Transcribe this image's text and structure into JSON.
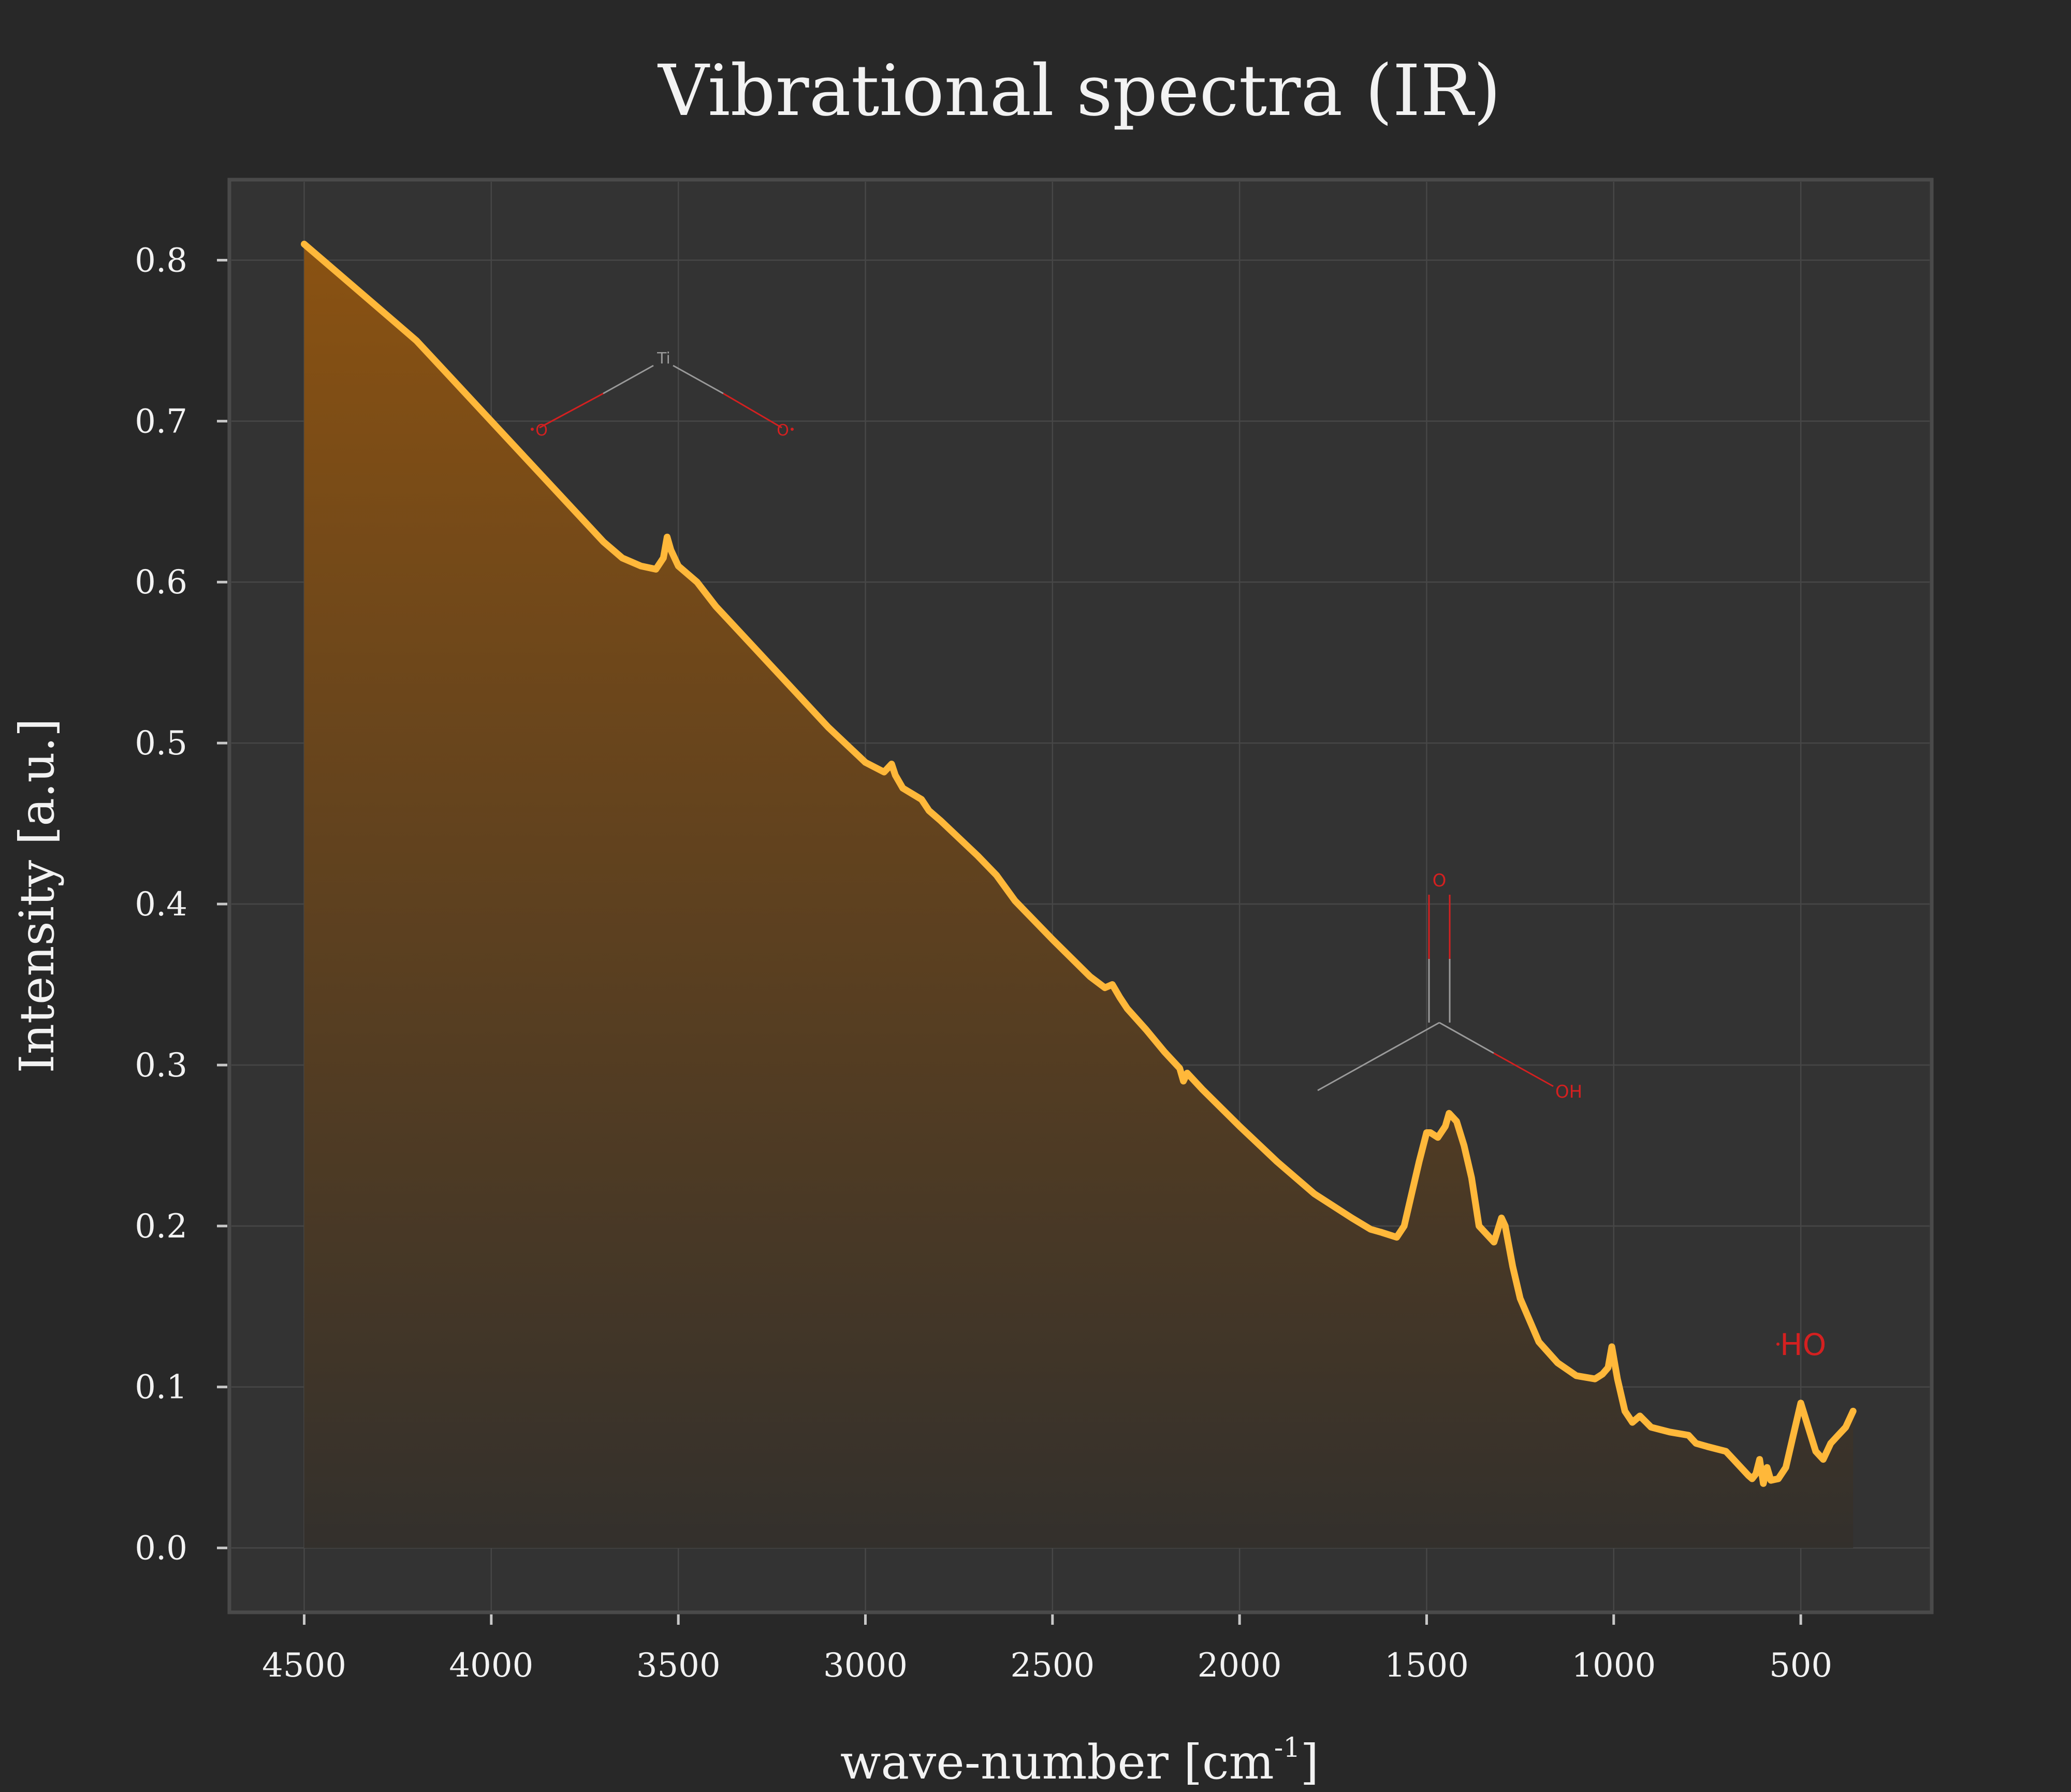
{
  "chart_data": {
    "type": "area",
    "title": "Vibrational spectra (IR)",
    "xlabel": "wave-number [cm",
    "xlabel_sup": "-1",
    "xlabel_suffix": "]",
    "ylabel": "Intensity [a.u.]",
    "xlim": [
      4700,
      150
    ],
    "ylim": [
      -0.04,
      0.85
    ],
    "x_reversed": true,
    "grid": true,
    "x_ticks": [
      4500,
      4000,
      3500,
      3000,
      2500,
      2000,
      1500,
      1000,
      500
    ],
    "y_ticks": [
      0.0,
      0.1,
      0.2,
      0.3,
      0.4,
      0.5,
      0.6,
      0.7,
      0.8
    ],
    "y_tick_labels": [
      "0.0",
      "0.1",
      "0.2",
      "0.3",
      "0.4",
      "0.5",
      "0.6",
      "0.7",
      "0.8"
    ],
    "series": [
      {
        "line_color": "#FFB83A",
        "fill_top_color": "#8a5212",
        "fill_bottom_color": "#33302c",
        "x": [
          4500,
          4400,
          4300,
          4200,
          4100,
          4000,
          3900,
          3800,
          3700,
          3650,
          3600,
          3560,
          3540,
          3530,
          3520,
          3500,
          3450,
          3400,
          3300,
          3200,
          3100,
          3000,
          2950,
          2930,
          2920,
          2900,
          2850,
          2830,
          2800,
          2700,
          2650,
          2600,
          2500,
          2400,
          2360,
          2340,
          2320,
          2300,
          2250,
          2200,
          2160,
          2150,
          2140,
          2100,
          2000,
          1900,
          1800,
          1700,
          1650,
          1620,
          1580,
          1560,
          1540,
          1520,
          1500,
          1490,
          1470,
          1450,
          1440,
          1420,
          1400,
          1380,
          1360,
          1340,
          1320,
          1300,
          1290,
          1270,
          1250,
          1200,
          1150,
          1100,
          1050,
          1030,
          1015,
          1005,
          990,
          970,
          950,
          930,
          900,
          850,
          800,
          780,
          750,
          700,
          680,
          660,
          640,
          630,
          620,
          610,
          600,
          590,
          580,
          560,
          540,
          520,
          500,
          480,
          460,
          440,
          420,
          400,
          380,
          360
        ],
        "y": [
          0.81,
          0.79,
          0.77,
          0.75,
          0.725,
          0.7,
          0.675,
          0.65,
          0.625,
          0.615,
          0.61,
          0.608,
          0.615,
          0.628,
          0.62,
          0.61,
          0.6,
          0.585,
          0.56,
          0.535,
          0.51,
          0.488,
          0.482,
          0.487,
          0.48,
          0.472,
          0.465,
          0.458,
          0.452,
          0.43,
          0.418,
          0.402,
          0.378,
          0.355,
          0.348,
          0.35,
          0.342,
          0.335,
          0.322,
          0.308,
          0.298,
          0.29,
          0.295,
          0.285,
          0.262,
          0.24,
          0.22,
          0.205,
          0.198,
          0.196,
          0.193,
          0.2,
          0.22,
          0.24,
          0.258,
          0.258,
          0.255,
          0.262,
          0.27,
          0.265,
          0.25,
          0.23,
          0.2,
          0.195,
          0.19,
          0.205,
          0.2,
          0.175,
          0.155,
          0.128,
          0.115,
          0.107,
          0.105,
          0.108,
          0.112,
          0.125,
          0.105,
          0.085,
          0.078,
          0.082,
          0.075,
          0.072,
          0.07,
          0.065,
          0.063,
          0.06,
          0.055,
          0.05,
          0.045,
          0.043,
          0.046,
          0.055,
          0.04,
          0.05,
          0.042,
          0.043,
          0.05,
          0.07,
          0.09,
          0.075,
          0.06,
          0.055,
          0.065,
          0.07,
          0.075,
          0.085
        ]
      }
    ]
  },
  "annotations": {
    "structure_1": {
      "ti": "Ti",
      "o_left": "O",
      "o_right": "O"
    },
    "structure_2": {
      "o_top": "O",
      "oh": "OH"
    },
    "structure_3": {
      "ho": "HO"
    },
    "bond_color": "#9a9a9a",
    "heteroatom_color": "#d42020"
  }
}
